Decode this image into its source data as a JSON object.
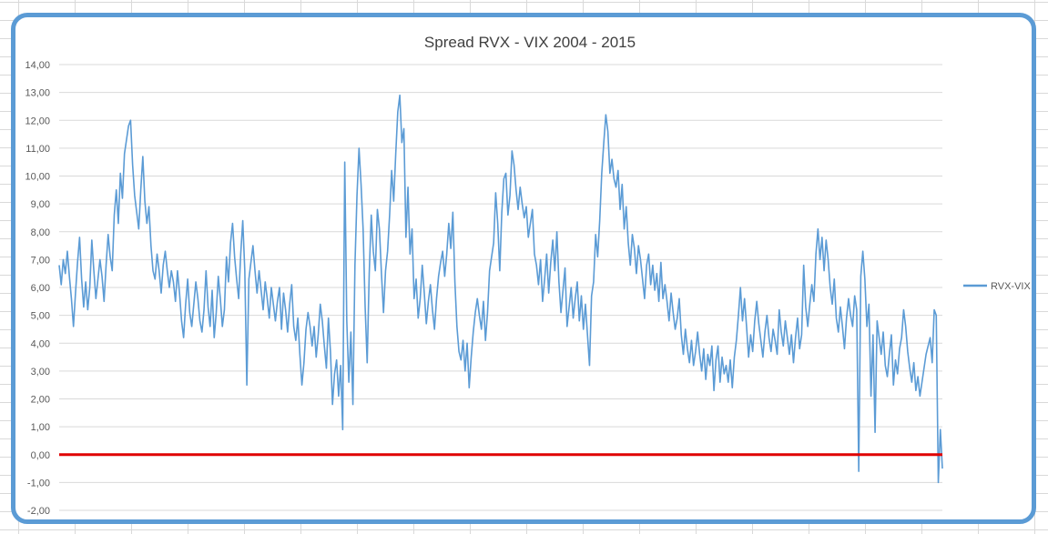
{
  "chart_data": {
    "type": "line",
    "title": "Spread RVX - VIX 2004 - 2015",
    "xlabel": "",
    "ylabel": "",
    "ylim": [
      -2,
      14
    ],
    "y_ticks": [
      "14,00",
      "13,00",
      "12,00",
      "11,00",
      "10,00",
      "9,00",
      "8,00",
      "7,00",
      "6,00",
      "5,00",
      "4,00",
      "3,00",
      "2,00",
      "1,00",
      "0,00",
      "-1,00",
      "-2,00"
    ],
    "x_ticks": [],
    "grid": true,
    "legend_position": "right",
    "series": [
      {
        "name": "RVX-VIX",
        "color": "#5b9bd5",
        "x_range": [
          0,
          1
        ],
        "values": [
          6.8,
          6.1,
          7.0,
          6.5,
          7.3,
          6.4,
          5.6,
          4.6,
          5.8,
          6.9,
          7.8,
          6.3,
          5.3,
          6.2,
          5.2,
          6.0,
          7.7,
          6.6,
          5.6,
          6.3,
          7.0,
          6.4,
          5.5,
          6.8,
          7.9,
          7.1,
          6.6,
          8.6,
          9.5,
          8.3,
          10.1,
          9.2,
          10.8,
          11.3,
          11.8,
          12.0,
          10.4,
          9.3,
          8.7,
          8.1,
          9.5,
          10.7,
          9.1,
          8.3,
          8.9,
          7.5,
          6.6,
          6.3,
          7.2,
          6.6,
          5.8,
          6.8,
          7.3,
          6.6,
          6.0,
          6.6,
          6.2,
          5.5,
          6.6,
          5.8,
          4.8,
          4.2,
          5.4,
          6.3,
          5.1,
          4.6,
          5.4,
          6.2,
          5.6,
          4.8,
          4.4,
          5.2,
          6.6,
          5.3,
          4.6,
          5.9,
          4.2,
          5.1,
          6.4,
          5.6,
          4.6,
          5.2,
          7.1,
          6.2,
          7.6,
          8.3,
          7.1,
          6.3,
          5.6,
          7.2,
          8.4,
          6.6,
          2.5,
          6.3,
          6.9,
          7.5,
          6.6,
          5.8,
          6.6,
          5.9,
          5.2,
          6.2,
          5.6,
          4.9,
          6.0,
          5.4,
          4.8,
          5.5,
          6.0,
          4.5,
          5.8,
          5.2,
          4.4,
          5.4,
          6.1,
          4.6,
          4.1,
          4.9,
          3.6,
          2.5,
          3.3,
          4.5,
          5.1,
          4.6,
          3.9,
          4.6,
          3.5,
          4.3,
          5.4,
          4.8,
          3.9,
          3.1,
          4.9,
          3.7,
          1.8,
          2.9,
          3.4,
          2.1,
          3.2,
          0.9,
          10.5,
          4.8,
          2.6,
          4.4,
          1.8,
          6.8,
          9.3,
          11.0,
          9.7,
          8.1,
          5.3,
          3.3,
          6.5,
          8.6,
          7.3,
          6.6,
          8.8,
          8.1,
          6.5,
          5.1,
          6.6,
          7.3,
          8.6,
          10.2,
          9.1,
          10.8,
          12.3,
          12.9,
          11.2,
          11.7,
          7.8,
          9.6,
          7.2,
          8.1,
          5.6,
          6.3,
          4.9,
          5.6,
          6.8,
          5.8,
          4.7,
          5.5,
          6.1,
          5.2,
          4.5,
          5.6,
          6.4,
          6.9,
          7.3,
          6.4,
          7.2,
          8.3,
          7.4,
          8.7,
          6.2,
          4.6,
          3.7,
          3.4,
          4.1,
          3.0,
          4.0,
          2.4,
          3.5,
          4.4,
          5.1,
          5.6,
          5.0,
          4.5,
          5.5,
          4.1,
          5.1,
          6.6,
          7.1,
          7.6,
          9.4,
          8.3,
          6.6,
          8.7,
          9.9,
          10.1,
          8.6,
          9.3,
          10.9,
          10.4,
          9.5,
          8.8,
          9.6,
          9.0,
          8.5,
          8.9,
          7.8,
          8.3,
          8.8,
          7.2,
          6.8,
          6.1,
          7.0,
          5.5,
          6.3,
          7.2,
          5.8,
          6.9,
          7.7,
          6.6,
          8.0,
          6.2,
          5.1,
          5.9,
          6.7,
          4.6,
          5.3,
          6.0,
          4.9,
          5.6,
          6.2,
          4.8,
          5.7,
          4.5,
          5.4,
          4.3,
          3.2,
          5.7,
          6.2,
          7.9,
          7.1,
          8.4,
          10.1,
          11.2,
          12.2,
          11.6,
          10.1,
          10.6,
          9.9,
          9.6,
          10.2,
          8.8,
          9.7,
          8.1,
          8.9,
          7.6,
          6.8,
          7.9,
          7.4,
          6.5,
          7.5,
          7.0,
          6.3,
          5.6,
          6.8,
          7.2,
          6.1,
          6.8,
          5.9,
          6.5,
          5.5,
          6.9,
          5.6,
          6.1,
          5.5,
          4.8,
          5.8,
          5.1,
          4.5,
          4.9,
          5.6,
          4.3,
          3.6,
          4.5,
          3.8,
          3.3,
          4.1,
          3.2,
          3.7,
          4.4,
          3.6,
          3.0,
          3.8,
          2.7,
          3.6,
          3.2,
          3.9,
          2.3,
          3.4,
          3.9,
          2.6,
          3.5,
          2.9,
          3.2,
          2.6,
          3.4,
          2.4,
          3.5,
          4.1,
          5.0,
          6.0,
          4.8,
          5.6,
          4.6,
          3.5,
          4.3,
          3.7,
          4.8,
          5.5,
          4.7,
          4.1,
          3.5,
          4.4,
          5.0,
          4.2,
          3.7,
          4.5,
          4.1,
          3.6,
          5.2,
          4.4,
          3.9,
          4.8,
          4.2,
          3.6,
          4.3,
          3.3,
          4.2,
          4.9,
          3.8,
          4.3,
          6.8,
          5.3,
          4.6,
          5.4,
          6.1,
          5.5,
          7.2,
          8.1,
          7.0,
          7.8,
          6.6,
          7.7,
          7.0,
          6.0,
          5.4,
          6.3,
          4.9,
          4.4,
          5.3,
          4.6,
          3.8,
          4.9,
          5.6,
          5.0,
          4.6,
          5.7,
          5.2,
          -0.6,
          6.4,
          7.3,
          6.3,
          4.6,
          5.4,
          2.1,
          4.3,
          0.8,
          4.8,
          4.2,
          3.6,
          4.4,
          3.2,
          2.8,
          3.6,
          4.3,
          2.5,
          3.4,
          2.9,
          3.8,
          4.2,
          5.2,
          4.6,
          3.7,
          3.1,
          2.6,
          3.3,
          2.3,
          2.8,
          2.1,
          2.6,
          3.1,
          3.6,
          3.9,
          4.2,
          3.3,
          5.2,
          5.0,
          -1.0,
          0.9,
          -0.5
        ]
      },
      {
        "name": "",
        "color": "#e00000",
        "x_range": [
          0,
          1
        ],
        "values": [
          0,
          0
        ]
      }
    ]
  }
}
